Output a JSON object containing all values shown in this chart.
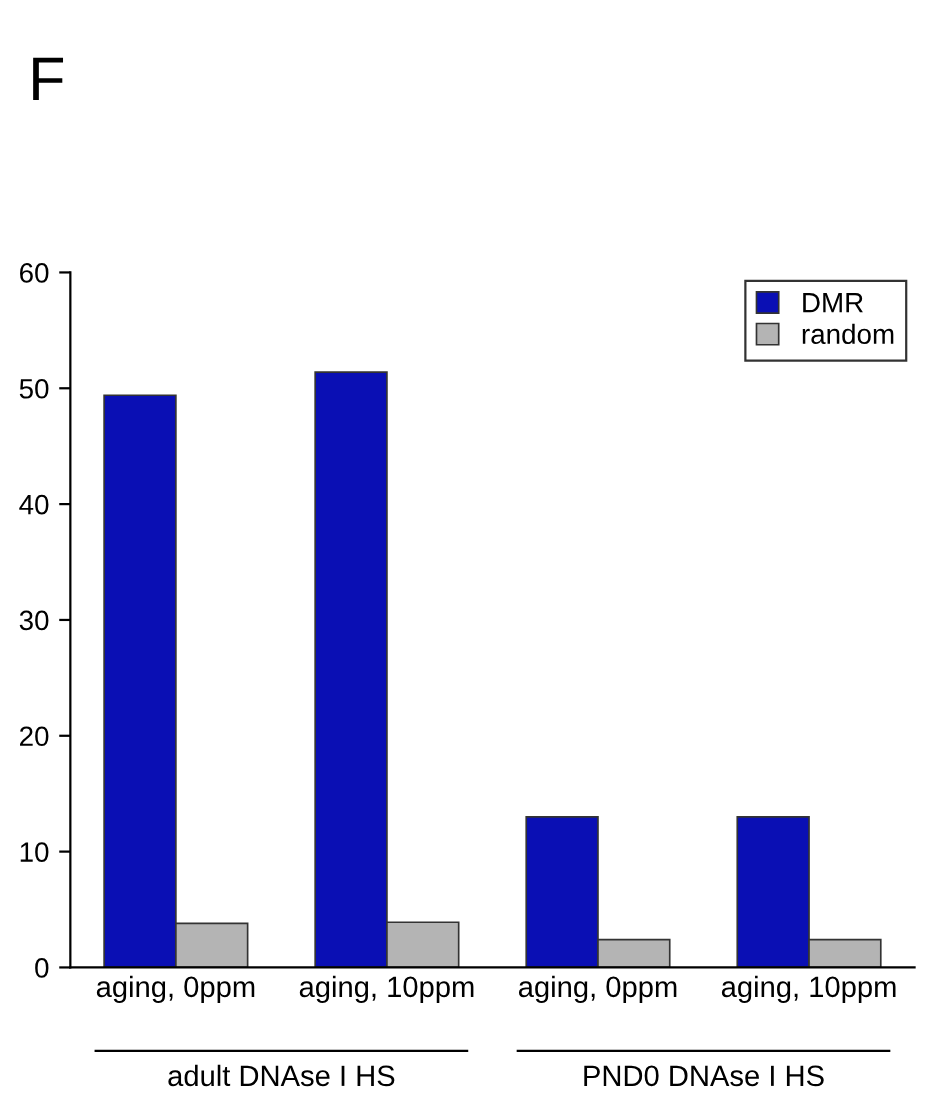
{
  "chart_data": {
    "type": "bar",
    "title": "F",
    "categories": [
      "aging, 0ppm",
      "aging, 10ppm",
      "aging, 0ppm",
      "aging, 10ppm"
    ],
    "series": [
      {
        "name": "DMR",
        "color": "#0a0fb4",
        "values": [
          49.4,
          51.4,
          13,
          13
        ]
      },
      {
        "name": "random",
        "color": "#b4b4b4",
        "values": [
          3.8,
          3.9,
          2.4,
          2.4
        ]
      }
    ],
    "ylim": [
      0,
      60
    ],
    "yticks": [
      0,
      10,
      20,
      30,
      40,
      50,
      60
    ],
    "grid": false,
    "legend": "top right",
    "annotations": [
      "adult DNAse I HS",
      "PND0 DNAse I HS"
    ]
  }
}
